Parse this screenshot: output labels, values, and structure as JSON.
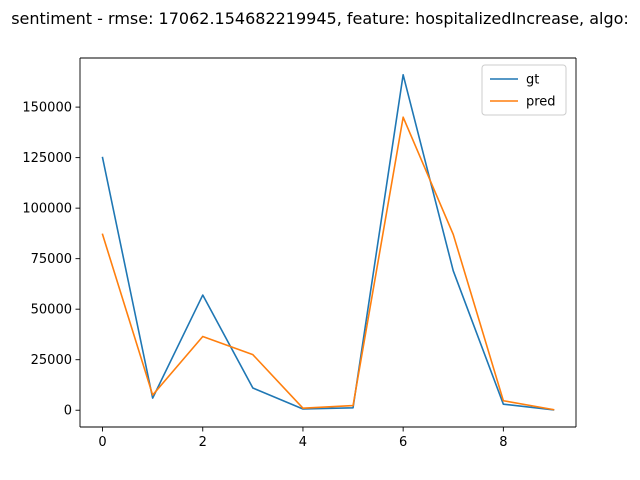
{
  "chart_data": {
    "type": "line",
    "title": "sentiment - rmse: 17062.154682219945, feature: hospitalizedIncrease, algo: ",
    "xlabel": "",
    "ylabel": "",
    "x": [
      0,
      1,
      2,
      3,
      4,
      5,
      6,
      7,
      8,
      9
    ],
    "xlim": [
      -0.45,
      9.45
    ],
    "ylim": [
      -8300,
      174300
    ],
    "xticks": [
      0,
      2,
      4,
      6,
      8
    ],
    "yticks": [
      0,
      25000,
      50000,
      75000,
      100000,
      125000,
      150000
    ],
    "grid": false,
    "legend_position": "top-right",
    "series": [
      {
        "name": "gt",
        "color": "#1f77b4",
        "values": [
          125000,
          6000,
          57000,
          11000,
          600,
          1200,
          166000,
          69000,
          3000,
          200
        ]
      },
      {
        "name": "pred",
        "color": "#ff7f0e",
        "values": [
          87000,
          7500,
          36500,
          27500,
          1000,
          2300,
          145000,
          87000,
          4700,
          300
        ]
      }
    ]
  }
}
